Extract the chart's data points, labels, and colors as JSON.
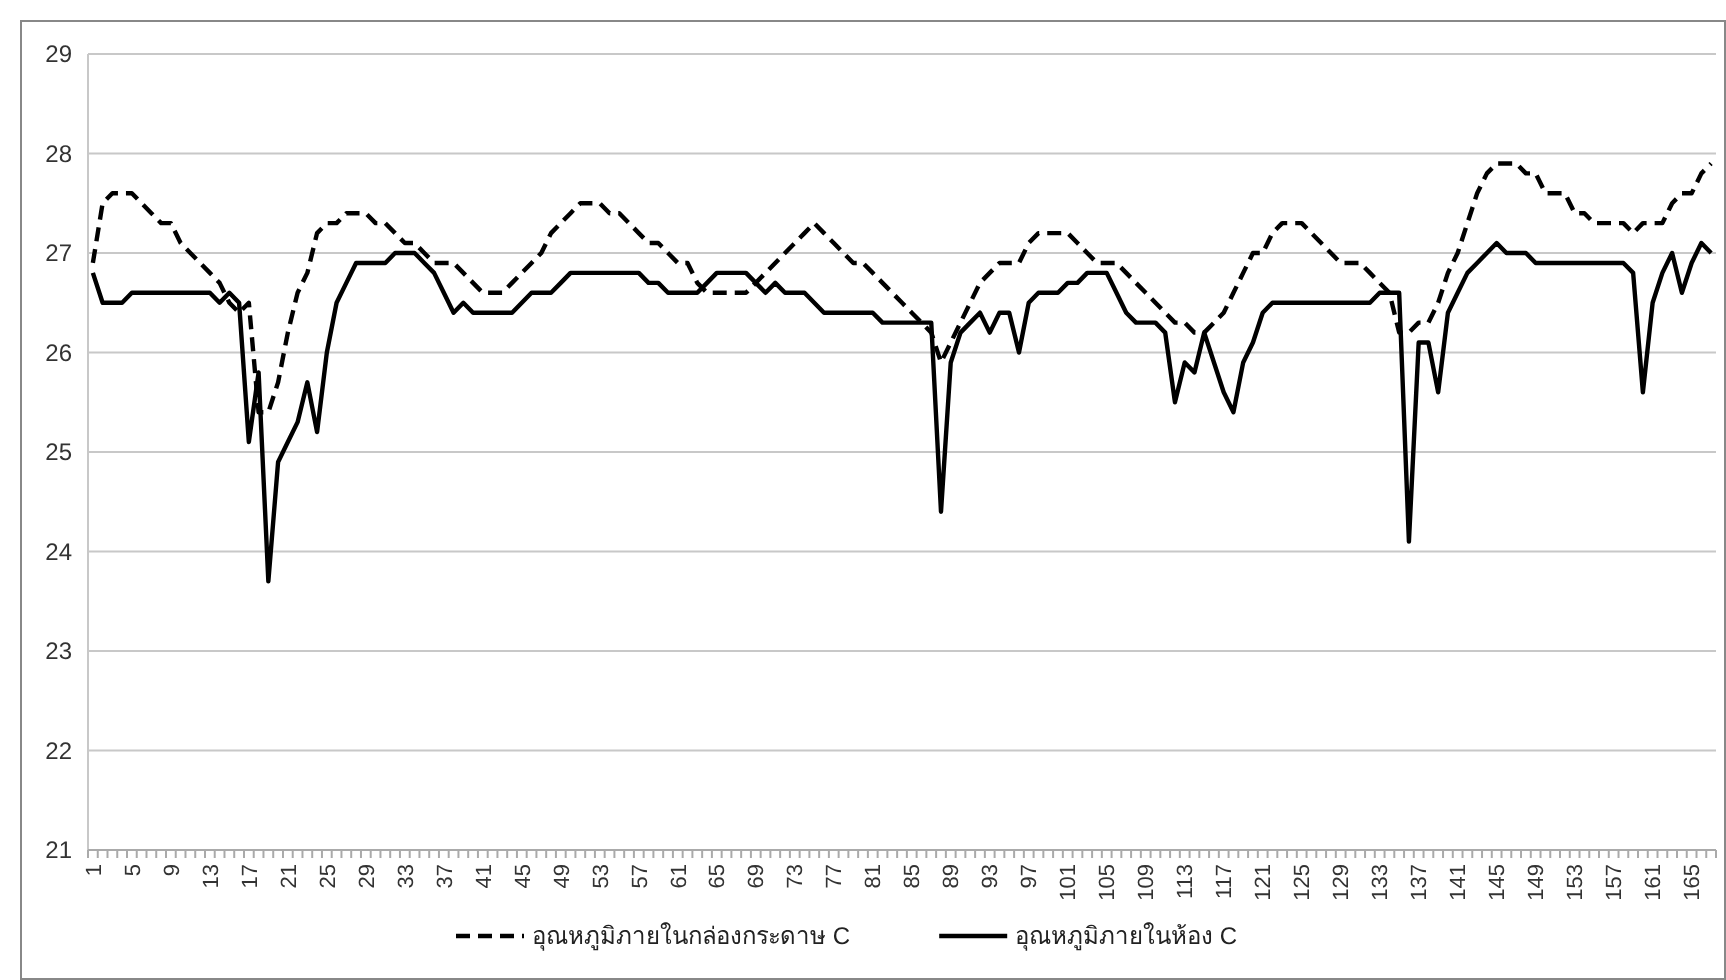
{
  "chart_data": {
    "type": "line",
    "categories": [
      "1",
      null,
      null,
      null,
      "5",
      null,
      null,
      null,
      "9",
      null,
      null,
      null,
      "13",
      null,
      null,
      null,
      "17",
      null,
      null,
      null,
      "21",
      null,
      null,
      null,
      "25",
      null,
      null,
      null,
      "29",
      null,
      null,
      null,
      "33",
      null,
      null,
      null,
      "37",
      null,
      null,
      null,
      "41",
      null,
      null,
      null,
      "45",
      null,
      null,
      null,
      "49",
      null,
      null,
      null,
      "53",
      null,
      null,
      null,
      "57",
      null,
      null,
      null,
      "61",
      null,
      null,
      null,
      "65",
      null,
      null,
      null,
      "69",
      null,
      null,
      null,
      "73",
      null,
      null,
      null,
      "77",
      null,
      null,
      null,
      "81",
      null,
      null,
      null,
      "85",
      null,
      null,
      null,
      "89",
      null,
      null,
      null,
      "93",
      null,
      null,
      null,
      "97",
      null,
      null,
      null,
      "101",
      null,
      null,
      null,
      "105",
      null,
      null,
      null,
      "109",
      null,
      null,
      null,
      "113",
      null,
      null,
      null,
      "117",
      null,
      null,
      null,
      "121",
      null,
      null,
      null,
      "125",
      null,
      null,
      null,
      "129",
      null,
      null,
      null,
      "133",
      null,
      null,
      null,
      "137",
      null,
      null,
      null,
      "141",
      null,
      null,
      null,
      "145",
      null,
      null,
      null,
      "149",
      null,
      null,
      null,
      "153",
      null,
      null,
      null,
      "157",
      null,
      null,
      null,
      "161",
      null,
      null,
      null,
      "165",
      null,
      null
    ],
    "series": [
      {
        "name": "อุณหภูมิภายในกล่องกระดาษ C",
        "color": "#000000",
        "line_style": "dashed",
        "values": [
          26.9,
          27.5,
          27.6,
          27.6,
          27.6,
          27.5,
          27.4,
          27.3,
          27.3,
          27.1,
          27.0,
          26.9,
          26.8,
          26.7,
          26.5,
          26.4,
          26.5,
          25.4,
          25.4,
          25.7,
          26.2,
          26.6,
          26.8,
          27.2,
          27.3,
          27.3,
          27.4,
          27.4,
          27.4,
          27.3,
          27.3,
          27.2,
          27.1,
          27.1,
          27.0,
          26.9,
          26.9,
          26.9,
          26.8,
          26.7,
          26.6,
          26.6,
          26.6,
          26.7,
          26.8,
          26.9,
          27.0,
          27.2,
          27.3,
          27.4,
          27.5,
          27.5,
          27.5,
          27.4,
          27.4,
          27.3,
          27.2,
          27.1,
          27.1,
          27.0,
          26.9,
          26.9,
          26.7,
          26.6,
          26.6,
          26.6,
          26.6,
          26.6,
          26.7,
          26.8,
          26.9,
          27.0,
          27.1,
          27.2,
          27.3,
          27.2,
          27.1,
          27.0,
          26.9,
          26.9,
          26.8,
          26.7,
          26.6,
          26.5,
          26.4,
          26.3,
          26.2,
          25.9,
          26.1,
          26.3,
          26.5,
          26.7,
          26.8,
          26.9,
          26.9,
          26.9,
          27.1,
          27.2,
          27.2,
          27.2,
          27.2,
          27.1,
          27.0,
          26.9,
          26.9,
          26.9,
          26.8,
          26.7,
          26.6,
          26.5,
          26.4,
          26.3,
          26.3,
          26.2,
          26.2,
          26.3,
          26.4,
          26.6,
          26.8,
          27.0,
          27.0,
          27.2,
          27.3,
          27.3,
          27.3,
          27.2,
          27.1,
          27.0,
          26.9,
          26.9,
          26.9,
          26.8,
          26.7,
          26.6,
          26.2,
          26.2,
          26.3,
          26.3,
          26.5,
          26.8,
          27.0,
          27.3,
          27.6,
          27.8,
          27.9,
          27.9,
          27.9,
          27.8,
          27.8,
          27.6,
          27.6,
          27.6,
          27.4,
          27.4,
          27.3,
          27.3,
          27.3,
          27.3,
          27.2,
          27.3,
          27.3,
          27.3,
          27.5,
          27.6,
          27.6,
          27.8,
          27.9
        ]
      },
      {
        "name": "อุณหภูมิภายในห้อง C",
        "color": "#000000",
        "line_style": "solid",
        "values": [
          26.8,
          26.5,
          26.5,
          26.5,
          26.6,
          26.6,
          26.6,
          26.6,
          26.6,
          26.6,
          26.6,
          26.6,
          26.6,
          26.5,
          26.6,
          26.5,
          25.1,
          25.8,
          23.7,
          24.9,
          25.1,
          25.3,
          25.7,
          25.2,
          26.0,
          26.5,
          26.7,
          26.9,
          26.9,
          26.9,
          26.9,
          27.0,
          27.0,
          27.0,
          26.9,
          26.8,
          26.6,
          26.4,
          26.5,
          26.4,
          26.4,
          26.4,
          26.4,
          26.4,
          26.5,
          26.6,
          26.6,
          26.6,
          26.7,
          26.8,
          26.8,
          26.8,
          26.8,
          26.8,
          26.8,
          26.8,
          26.8,
          26.7,
          26.7,
          26.6,
          26.6,
          26.6,
          26.6,
          26.7,
          26.8,
          26.8,
          26.8,
          26.8,
          26.7,
          26.6,
          26.7,
          26.6,
          26.6,
          26.6,
          26.5,
          26.4,
          26.4,
          26.4,
          26.4,
          26.4,
          26.4,
          26.3,
          26.3,
          26.3,
          26.3,
          26.3,
          26.3,
          24.4,
          25.9,
          26.2,
          26.3,
          26.4,
          26.2,
          26.4,
          26.4,
          26.0,
          26.5,
          26.6,
          26.6,
          26.6,
          26.7,
          26.7,
          26.8,
          26.8,
          26.8,
          26.6,
          26.4,
          26.3,
          26.3,
          26.3,
          26.2,
          25.5,
          25.9,
          25.8,
          26.2,
          25.9,
          25.6,
          25.4,
          25.9,
          26.1,
          26.4,
          26.5,
          26.5,
          26.5,
          26.5,
          26.5,
          26.5,
          26.5,
          26.5,
          26.5,
          26.5,
          26.5,
          26.6,
          26.6,
          26.6,
          24.1,
          26.1,
          26.1,
          25.6,
          26.4,
          26.6,
          26.8,
          26.9,
          27.0,
          27.1,
          27.0,
          27.0,
          27.0,
          26.9,
          26.9,
          26.9,
          26.9,
          26.9,
          26.9,
          26.9,
          26.9,
          26.9,
          26.9,
          26.8,
          25.6,
          26.5,
          26.8,
          27.0,
          26.6,
          26.9,
          27.1,
          27.0
        ]
      }
    ],
    "ylim": [
      21,
      29
    ],
    "yticks": [
      21,
      22,
      23,
      24,
      25,
      26,
      27,
      28,
      29
    ],
    "grid": "y",
    "legend": "bottom",
    "marker": "none"
  }
}
